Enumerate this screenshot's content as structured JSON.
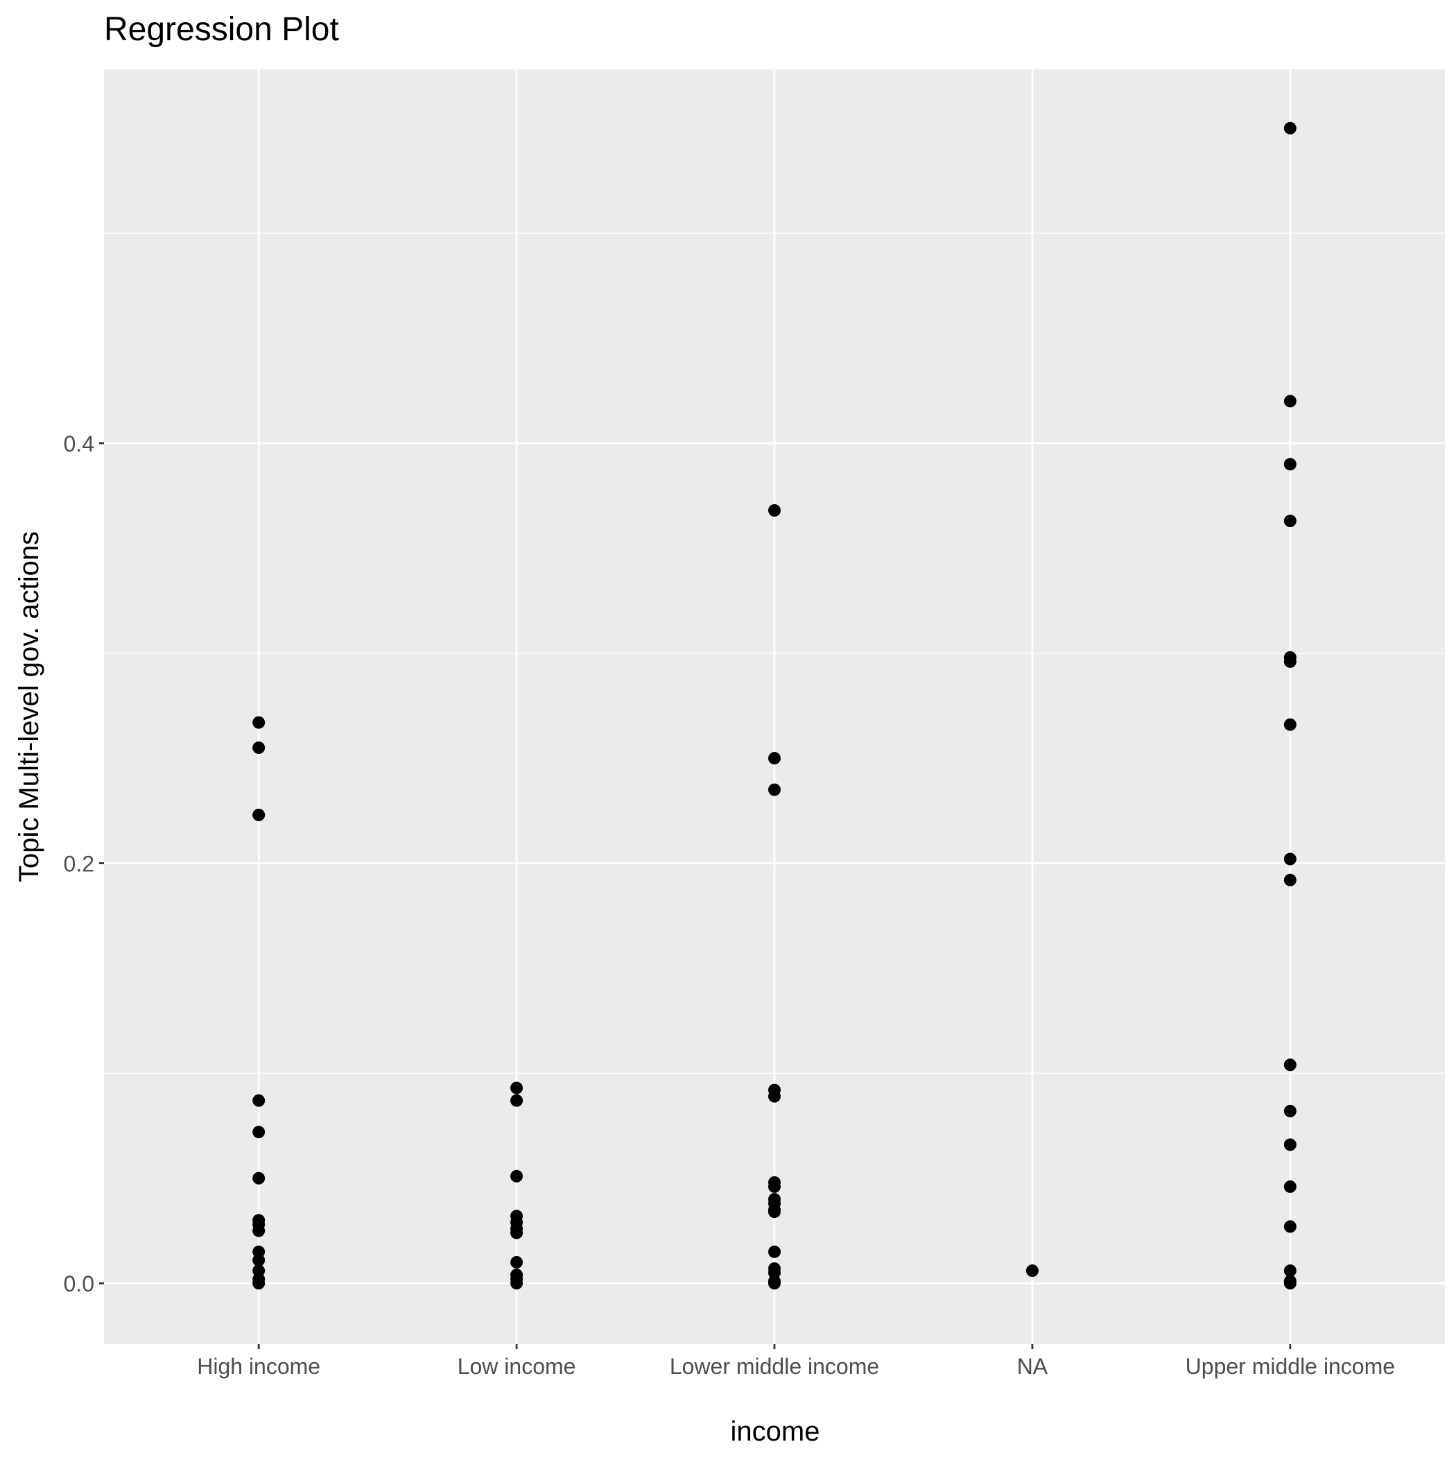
{
  "chart_data": {
    "type": "scatter",
    "title": "Regression Plot",
    "xlabel": "income",
    "ylabel": "Topic Multi-level gov. actions",
    "categories": [
      "High income",
      "Low income",
      "Lower middle income",
      "NA",
      "Upper middle income"
    ],
    "ylim": [
      -0.029,
      0.578
    ],
    "yticks": [
      0.0,
      0.2,
      0.4
    ],
    "ytick_labels": [
      "0.0",
      "0.2",
      "0.4"
    ],
    "grid": true,
    "colors": {
      "panel_background": "#ebebeb",
      "grid_line": "#ffffff",
      "point": "#000000",
      "tick_text": "#4d4d4d",
      "title_text": "#000000"
    },
    "points": [
      {
        "x": "High income",
        "y": 0.267
      },
      {
        "x": "High income",
        "y": 0.255
      },
      {
        "x": "High income",
        "y": 0.223
      },
      {
        "x": "High income",
        "y": 0.087
      },
      {
        "x": "High income",
        "y": 0.072
      },
      {
        "x": "High income",
        "y": 0.05
      },
      {
        "x": "High income",
        "y": 0.03
      },
      {
        "x": "High income",
        "y": 0.028
      },
      {
        "x": "High income",
        "y": 0.025
      },
      {
        "x": "High income",
        "y": 0.015
      },
      {
        "x": "High income",
        "y": 0.011
      },
      {
        "x": "High income",
        "y": 0.006
      },
      {
        "x": "High income",
        "y": 0.002
      },
      {
        "x": "High income",
        "y": 0.0
      },
      {
        "x": "Low income",
        "y": 0.093
      },
      {
        "x": "Low income",
        "y": 0.087
      },
      {
        "x": "Low income",
        "y": 0.051
      },
      {
        "x": "Low income",
        "y": 0.032
      },
      {
        "x": "Low income",
        "y": 0.029
      },
      {
        "x": "Low income",
        "y": 0.026
      },
      {
        "x": "Low income",
        "y": 0.024
      },
      {
        "x": "Low income",
        "y": 0.01
      },
      {
        "x": "Low income",
        "y": 0.004
      },
      {
        "x": "Low income",
        "y": 0.002
      },
      {
        "x": "Low income",
        "y": 0.0
      },
      {
        "x": "Lower middle income",
        "y": 0.368
      },
      {
        "x": "Lower middle income",
        "y": 0.25
      },
      {
        "x": "Lower middle income",
        "y": 0.235
      },
      {
        "x": "Lower middle income",
        "y": 0.092
      },
      {
        "x": "Lower middle income",
        "y": 0.089
      },
      {
        "x": "Lower middle income",
        "y": 0.048
      },
      {
        "x": "Lower middle income",
        "y": 0.046
      },
      {
        "x": "Lower middle income",
        "y": 0.04
      },
      {
        "x": "Lower middle income",
        "y": 0.038
      },
      {
        "x": "Lower middle income",
        "y": 0.035
      },
      {
        "x": "Lower middle income",
        "y": 0.034
      },
      {
        "x": "Lower middle income",
        "y": 0.015
      },
      {
        "x": "Lower middle income",
        "y": 0.007
      },
      {
        "x": "Lower middle income",
        "y": 0.005
      },
      {
        "x": "Lower middle income",
        "y": 0.001
      },
      {
        "x": "Lower middle income",
        "y": 0.0
      },
      {
        "x": "NA",
        "y": 0.006
      },
      {
        "x": "Upper middle income",
        "y": 0.55
      },
      {
        "x": "Upper middle income",
        "y": 0.42
      },
      {
        "x": "Upper middle income",
        "y": 0.39
      },
      {
        "x": "Upper middle income",
        "y": 0.363
      },
      {
        "x": "Upper middle income",
        "y": 0.298
      },
      {
        "x": "Upper middle income",
        "y": 0.296
      },
      {
        "x": "Upper middle income",
        "y": 0.266
      },
      {
        "x": "Upper middle income",
        "y": 0.202
      },
      {
        "x": "Upper middle income",
        "y": 0.192
      },
      {
        "x": "Upper middle income",
        "y": 0.104
      },
      {
        "x": "Upper middle income",
        "y": 0.082
      },
      {
        "x": "Upper middle income",
        "y": 0.066
      },
      {
        "x": "Upper middle income",
        "y": 0.046
      },
      {
        "x": "Upper middle income",
        "y": 0.027
      },
      {
        "x": "Upper middle income",
        "y": 0.006
      },
      {
        "x": "Upper middle income",
        "y": 0.001
      },
      {
        "x": "Upper middle income",
        "y": 0.0
      }
    ]
  }
}
